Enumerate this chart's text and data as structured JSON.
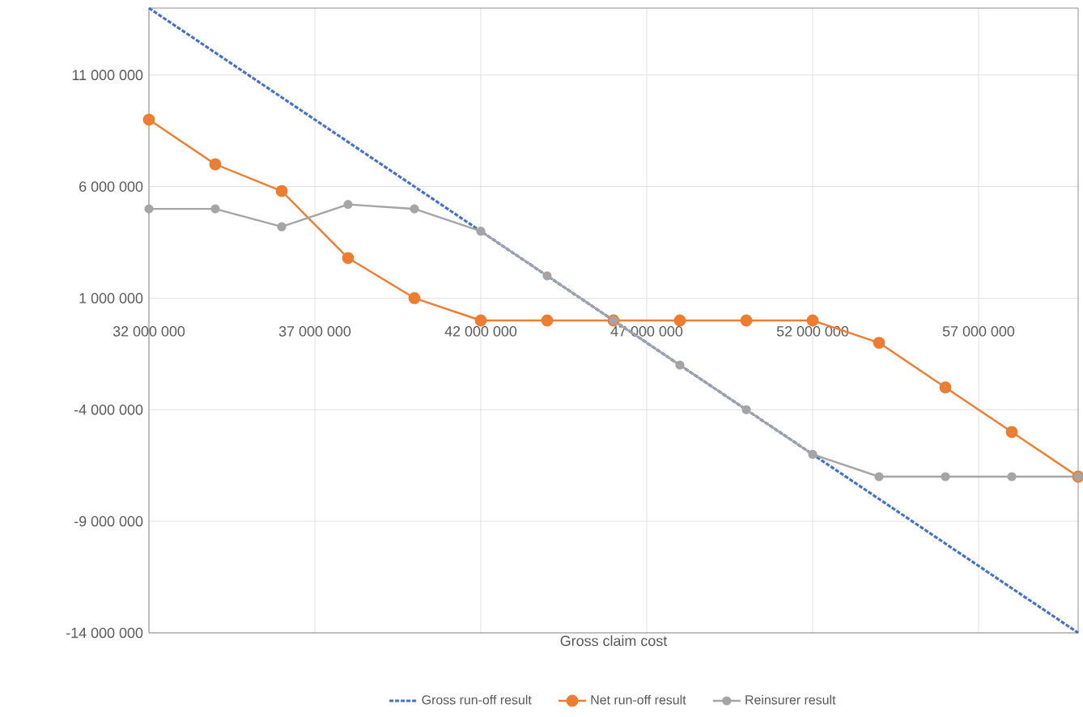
{
  "chart_data": {
    "type": "line",
    "xlabel": "Gross claim cost",
    "x": [
      32000000,
      34000000,
      36000000,
      38000000,
      40000000,
      42000000,
      44000000,
      46000000,
      48000000,
      50000000,
      52000000,
      54000000,
      56000000,
      58000000,
      60000000
    ],
    "series": [
      {
        "name": "Gross run-off result",
        "color": "#4472c4",
        "line_style": "dashed",
        "marker": "none",
        "values": [
          14000000,
          12000000,
          10000000,
          8000000,
          6000000,
          4000000,
          2000000,
          0,
          -2000000,
          -4000000,
          -6000000,
          -8000000,
          -10000000,
          -12000000,
          -14000000
        ]
      },
      {
        "name": "Net run-off result",
        "color": "#ed7d31",
        "line_style": "solid",
        "marker": "circle",
        "values": [
          9000000,
          7000000,
          5800000,
          2800000,
          1000000,
          0,
          0,
          0,
          0,
          0,
          0,
          -1000000,
          -3000000,
          -5000000,
          -7000000
        ]
      },
      {
        "name": "Reinsurer result",
        "color": "#a5a5a5",
        "line_style": "solid",
        "marker": "circle",
        "values": [
          5000000,
          5000000,
          4200000,
          5200000,
          5000000,
          4000000,
          2000000,
          0,
          -2000000,
          -4000000,
          -6000000,
          -7000000,
          -7000000,
          -7000000,
          -7000000
        ]
      }
    ],
    "xlim": [
      32000000,
      60000000
    ],
    "ylim": [
      -14000000,
      14000000
    ],
    "xticks": [
      {
        "value": 32000000,
        "label": "32 000 000"
      },
      {
        "value": 37000000,
        "label": "37 000 000"
      },
      {
        "value": 42000000,
        "label": "42 000 000"
      },
      {
        "value": 47000000,
        "label": "47 000 000"
      },
      {
        "value": 52000000,
        "label": "52 000 000"
      },
      {
        "value": 57000000,
        "label": "57 000 000"
      }
    ],
    "yticks": [
      {
        "value": -14000000,
        "label": "-14 000 000"
      },
      {
        "value": -9000000,
        "label": "-9 000 000"
      },
      {
        "value": -4000000,
        "label": "-4 000 000"
      },
      {
        "value": 1000000,
        "label": "1 000 000"
      },
      {
        "value": 6000000,
        "label": "6 000 000"
      },
      {
        "value": 11000000,
        "label": "11 000 000"
      }
    ],
    "grid": true,
    "legend": "bottom"
  }
}
